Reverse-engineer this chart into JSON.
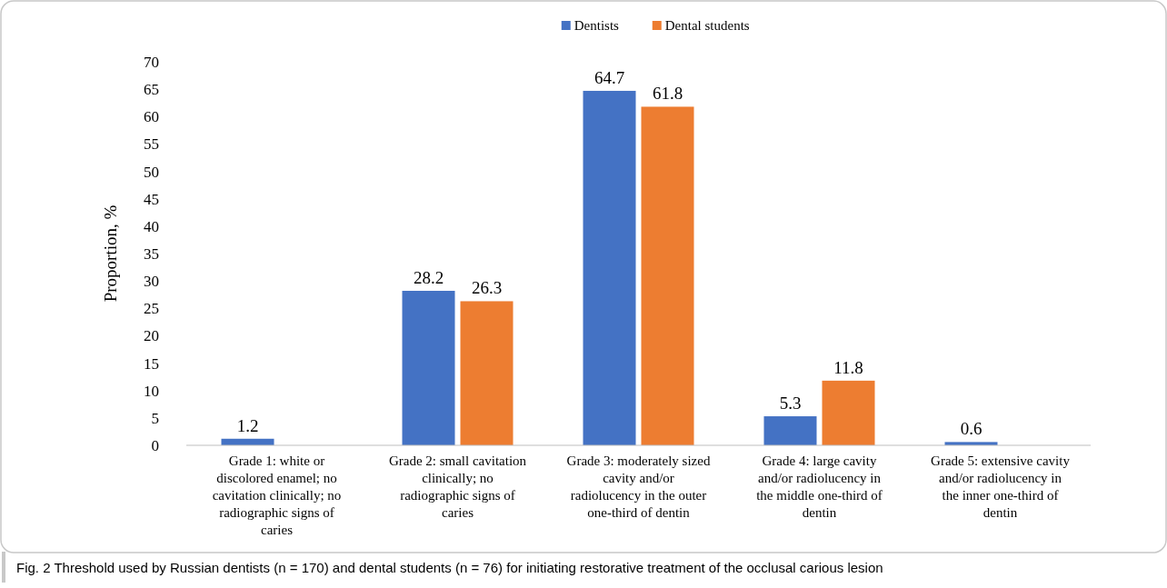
{
  "chart_data": {
    "type": "bar",
    "ylabel": "Proportion, %",
    "categories": [
      "Grade 1: white or discolored enamel; no cavitation clinically; no radiographic signs of caries",
      "Grade 2: small cavitation clinically; no radiographic signs of caries",
      "Grade 3: moderately sized cavity and/or radiolucency in the outer one-third of dentin",
      "Grade 4: large cavity and/or radiolucency in the middle one-third of dentin",
      "Grade 5: extensive cavity and/or radiolucency in the inner one-third of dentin"
    ],
    "series": [
      {
        "name": "Dentists",
        "color": "#4472c4",
        "values": [
          1.2,
          28.2,
          64.7,
          5.3,
          0.6
        ]
      },
      {
        "name": "Dental students",
        "color": "#ed7d31",
        "values": [
          null,
          26.3,
          61.8,
          11.8,
          null
        ]
      }
    ],
    "ylim": [
      0,
      70
    ],
    "yticks": [
      0,
      5,
      10,
      15,
      20,
      25,
      30,
      35,
      40,
      45,
      50,
      55,
      60,
      65,
      70
    ],
    "data_labels": true,
    "grid": false,
    "legend": "top",
    "annotations": [
      "Fig. 2  Threshold used by Russian dentists (n = 170) and dental students (n = 76) for initiating restorative treatment of the occlusal carious lesion"
    ]
  }
}
